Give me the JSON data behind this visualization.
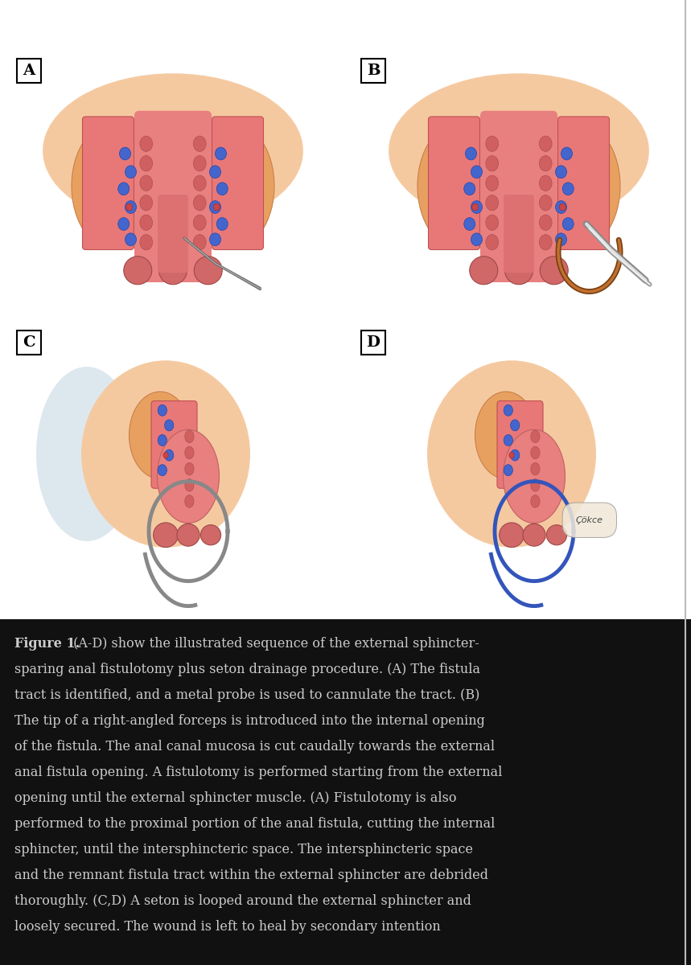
{
  "figure_width": 8.59,
  "figure_height": 12.0,
  "background_color": "#ffffff",
  "caption_bg_color": "#111111",
  "caption_text_color": "#cccccc",
  "panel_labels": [
    "A",
    "B",
    "C",
    "D"
  ],
  "skin_color": "#f5c9a0",
  "tissue_orange": "#e8a060",
  "muscle_pink": "#e87878",
  "mucosa_pink": "#d06060",
  "canal_pink": "#e89090",
  "blue_dot_color": "#4466cc",
  "red_dot_color": "#cc4444",
  "seton_color": "#3355bb",
  "caption_fontsize": 11.5,
  "label_fontsize": 14,
  "caption_lines": [
    [
      "Figure 1.",
      " (A-D) show the illustrated sequence of the external sphincter-"
    ],
    [
      "",
      "sparing anal fistulotomy plus seton drainage procedure. (A) The fistula"
    ],
    [
      "",
      "tract is identified, and a metal probe is used to cannulate the tract. (B)"
    ],
    [
      "",
      "The tip of a right-angled forceps is introduced into the internal opening"
    ],
    [
      "",
      "of the fistula. The anal canal mucosa is cut caudally towards the external"
    ],
    [
      "",
      "anal fistula opening. A fistulotomy is performed starting from the external"
    ],
    [
      "",
      "opening until the external sphincter muscle. (A) Fistulotomy is also"
    ],
    [
      "",
      "performed to the proximal portion of the anal fistula, cutting the internal"
    ],
    [
      "",
      "sphincter, until the intersphincteric space. The intersphincteric space"
    ],
    [
      "",
      "and the remnant fistula tract within the external sphincter are debrided"
    ],
    [
      "",
      "thoroughly. (C,D) A seton is looped around the external sphincter and"
    ],
    [
      "",
      "loosely secured. The wound is left to heal by secondary intention"
    ]
  ]
}
